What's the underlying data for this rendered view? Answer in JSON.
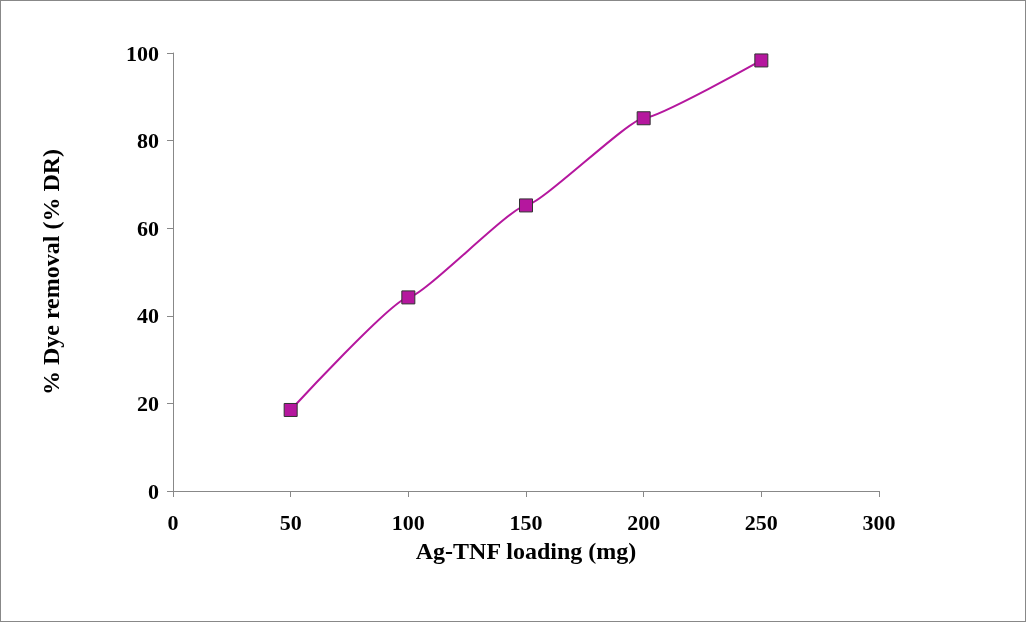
{
  "chart_data": {
    "type": "line",
    "xlabel": "Ag-TNF loading (mg)",
    "ylabel": "% Dye removal (% DR)",
    "x": [
      50,
      100,
      150,
      200,
      250
    ],
    "series": [
      {
        "color": "#b5179e",
        "values": [
          18.5,
          44.2,
          65.2,
          85.1,
          98.3
        ]
      }
    ],
    "xlim": [
      0,
      300
    ],
    "xticks": [
      0,
      50,
      100,
      150,
      200,
      250,
      300
    ],
    "ylim": [
      0,
      100
    ],
    "yticks": [
      0,
      20,
      40,
      60,
      80,
      100
    ],
    "grid": false,
    "marker": "square",
    "line_style": "solid"
  }
}
